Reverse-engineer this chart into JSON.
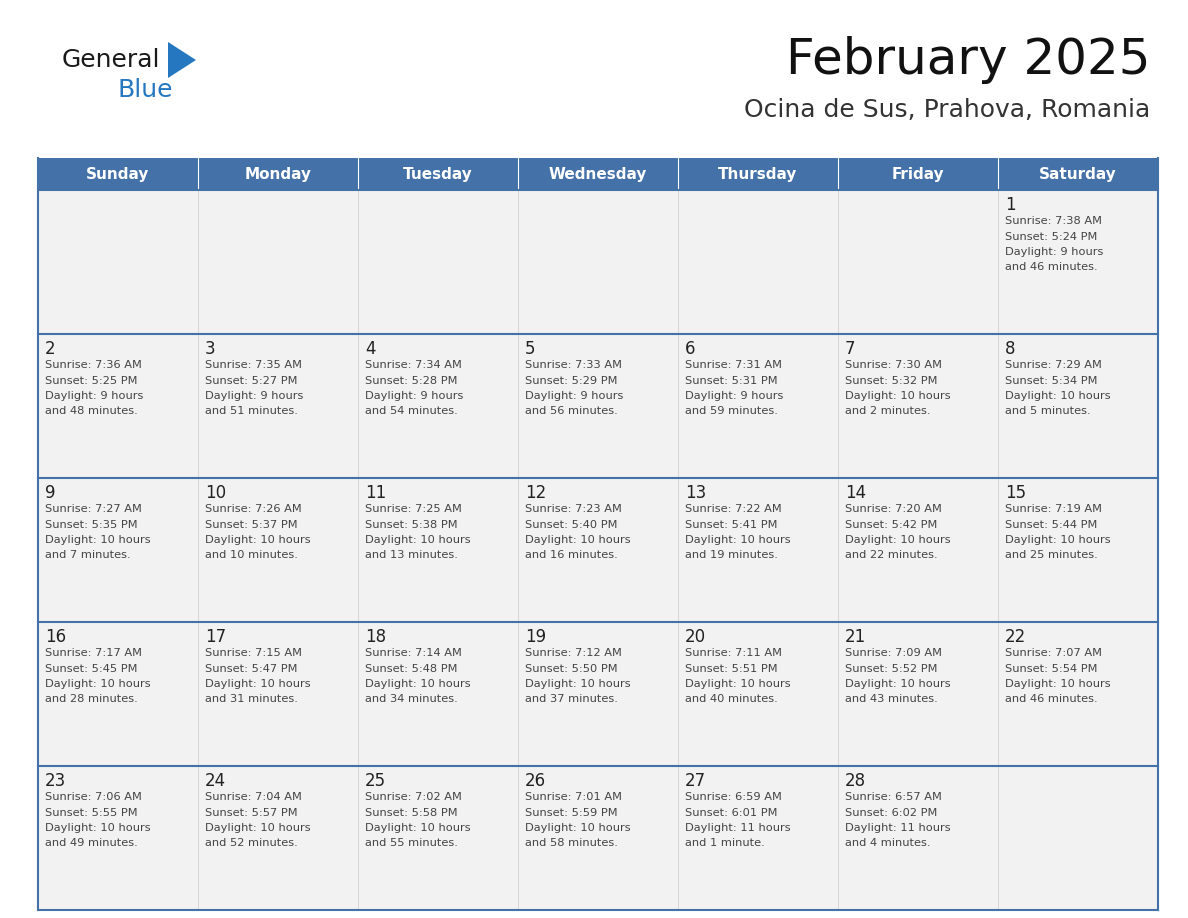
{
  "title": "February 2025",
  "subtitle": "Ocina de Sus, Prahova, Romania",
  "days_of_week": [
    "Sunday",
    "Monday",
    "Tuesday",
    "Wednesday",
    "Thursday",
    "Friday",
    "Saturday"
  ],
  "header_bg": "#4472a8",
  "header_text_color": "#ffffff",
  "cell_bg": "#f2f2f2",
  "cell_text_color": "#444444",
  "day_num_color": "#222222",
  "grid_line_color": "#4472a8",
  "title_color": "#111111",
  "subtitle_color": "#333333",
  "logo_general_color": "#1a1a1a",
  "logo_blue_color": "#2577c0",
  "calendar_data": [
    [
      null,
      null,
      null,
      null,
      null,
      null,
      {
        "day": 1,
        "sunrise": "7:38 AM",
        "sunset": "5:24 PM",
        "daylight": "9 hours and 46 minutes."
      }
    ],
    [
      {
        "day": 2,
        "sunrise": "7:36 AM",
        "sunset": "5:25 PM",
        "daylight": "9 hours and 48 minutes."
      },
      {
        "day": 3,
        "sunrise": "7:35 AM",
        "sunset": "5:27 PM",
        "daylight": "9 hours and 51 minutes."
      },
      {
        "day": 4,
        "sunrise": "7:34 AM",
        "sunset": "5:28 PM",
        "daylight": "9 hours and 54 minutes."
      },
      {
        "day": 5,
        "sunrise": "7:33 AM",
        "sunset": "5:29 PM",
        "daylight": "9 hours and 56 minutes."
      },
      {
        "day": 6,
        "sunrise": "7:31 AM",
        "sunset": "5:31 PM",
        "daylight": "9 hours and 59 minutes."
      },
      {
        "day": 7,
        "sunrise": "7:30 AM",
        "sunset": "5:32 PM",
        "daylight": "10 hours and 2 minutes."
      },
      {
        "day": 8,
        "sunrise": "7:29 AM",
        "sunset": "5:34 PM",
        "daylight": "10 hours and 5 minutes."
      }
    ],
    [
      {
        "day": 9,
        "sunrise": "7:27 AM",
        "sunset": "5:35 PM",
        "daylight": "10 hours and 7 minutes."
      },
      {
        "day": 10,
        "sunrise": "7:26 AM",
        "sunset": "5:37 PM",
        "daylight": "10 hours and 10 minutes."
      },
      {
        "day": 11,
        "sunrise": "7:25 AM",
        "sunset": "5:38 PM",
        "daylight": "10 hours and 13 minutes."
      },
      {
        "day": 12,
        "sunrise": "7:23 AM",
        "sunset": "5:40 PM",
        "daylight": "10 hours and 16 minutes."
      },
      {
        "day": 13,
        "sunrise": "7:22 AM",
        "sunset": "5:41 PM",
        "daylight": "10 hours and 19 minutes."
      },
      {
        "day": 14,
        "sunrise": "7:20 AM",
        "sunset": "5:42 PM",
        "daylight": "10 hours and 22 minutes."
      },
      {
        "day": 15,
        "sunrise": "7:19 AM",
        "sunset": "5:44 PM",
        "daylight": "10 hours and 25 minutes."
      }
    ],
    [
      {
        "day": 16,
        "sunrise": "7:17 AM",
        "sunset": "5:45 PM",
        "daylight": "10 hours and 28 minutes."
      },
      {
        "day": 17,
        "sunrise": "7:15 AM",
        "sunset": "5:47 PM",
        "daylight": "10 hours and 31 minutes."
      },
      {
        "day": 18,
        "sunrise": "7:14 AM",
        "sunset": "5:48 PM",
        "daylight": "10 hours and 34 minutes."
      },
      {
        "day": 19,
        "sunrise": "7:12 AM",
        "sunset": "5:50 PM",
        "daylight": "10 hours and 37 minutes."
      },
      {
        "day": 20,
        "sunrise": "7:11 AM",
        "sunset": "5:51 PM",
        "daylight": "10 hours and 40 minutes."
      },
      {
        "day": 21,
        "sunrise": "7:09 AM",
        "sunset": "5:52 PM",
        "daylight": "10 hours and 43 minutes."
      },
      {
        "day": 22,
        "sunrise": "7:07 AM",
        "sunset": "5:54 PM",
        "daylight": "10 hours and 46 minutes."
      }
    ],
    [
      {
        "day": 23,
        "sunrise": "7:06 AM",
        "sunset": "5:55 PM",
        "daylight": "10 hours and 49 minutes."
      },
      {
        "day": 24,
        "sunrise": "7:04 AM",
        "sunset": "5:57 PM",
        "daylight": "10 hours and 52 minutes."
      },
      {
        "day": 25,
        "sunrise": "7:02 AM",
        "sunset": "5:58 PM",
        "daylight": "10 hours and 55 minutes."
      },
      {
        "day": 26,
        "sunrise": "7:01 AM",
        "sunset": "5:59 PM",
        "daylight": "10 hours and 58 minutes."
      },
      {
        "day": 27,
        "sunrise": "6:59 AM",
        "sunset": "6:01 PM",
        "daylight": "11 hours and 1 minute."
      },
      {
        "day": 28,
        "sunrise": "6:57 AM",
        "sunset": "6:02 PM",
        "daylight": "11 hours and 4 minutes."
      },
      null
    ]
  ]
}
